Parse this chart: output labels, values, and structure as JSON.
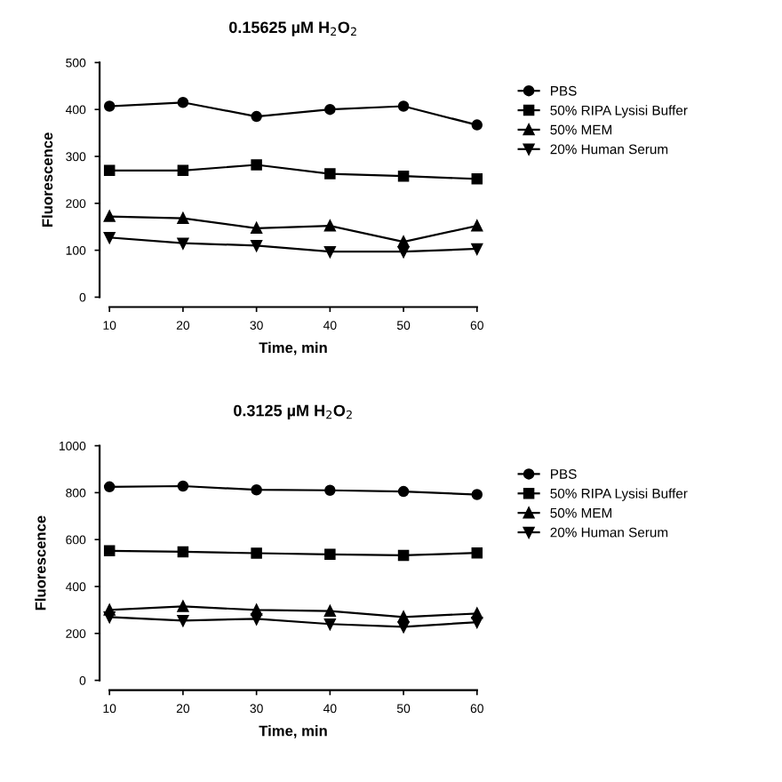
{
  "chart_data": [
    {
      "type": "line",
      "title": "0.15625 µM H$_{2}$O$_{2}$",
      "xlabel": "Time, min",
      "ylabel": "Fluorescence",
      "x": [
        10,
        20,
        30,
        40,
        50,
        60
      ],
      "xlim": [
        10,
        60
      ],
      "xticks": [
        10,
        20,
        30,
        40,
        50,
        60
      ],
      "ylim": [
        0,
        500
      ],
      "yticks": [
        0,
        100,
        200,
        300,
        400,
        500
      ],
      "legend": "right",
      "grid": false,
      "series": [
        {
          "name": "PBS",
          "color": "#000000",
          "marker": "circle",
          "values": [
            407,
            415,
            385,
            400,
            407,
            367
          ]
        },
        {
          "name": "50% RIPA Lysisi Buffer",
          "color": "#000000",
          "marker": "square",
          "values": [
            270,
            270,
            282,
            263,
            258,
            252
          ]
        },
        {
          "name": "50% MEM",
          "color": "#000000",
          "marker": "triangle",
          "values": [
            172,
            168,
            147,
            152,
            118,
            152
          ]
        },
        {
          "name": "20% Human Serum",
          "color": "#000000",
          "marker": "triangle-down",
          "values": [
            127,
            115,
            110,
            97,
            97,
            103
          ]
        }
      ]
    },
    {
      "type": "line",
      "title": "0.3125 µM H$_{2}$O$_{2}$",
      "xlabel": "Time, min",
      "ylabel": "Fluorescence",
      "x": [
        10,
        20,
        30,
        40,
        50,
        60
      ],
      "xlim": [
        10,
        60
      ],
      "xticks": [
        10,
        20,
        30,
        40,
        50,
        60
      ],
      "ylim": [
        0,
        1000
      ],
      "yticks": [
        0,
        200,
        400,
        600,
        800,
        1000
      ],
      "legend": "right",
      "grid": false,
      "series": [
        {
          "name": "PBS",
          "color": "#000000",
          "marker": "circle",
          "values": [
            825,
            828,
            812,
            810,
            805,
            792
          ]
        },
        {
          "name": "50% RIPA Lysisi Buffer",
          "color": "#000000",
          "marker": "square",
          "values": [
            552,
            548,
            542,
            537,
            533,
            543
          ]
        },
        {
          "name": "50% MEM",
          "color": "#000000",
          "marker": "triangle",
          "values": [
            300,
            315,
            300,
            295,
            270,
            285
          ]
        },
        {
          "name": "20% Human Serum",
          "color": "#000000",
          "marker": "triangle-down",
          "values": [
            270,
            255,
            262,
            240,
            228,
            248
          ]
        }
      ]
    }
  ]
}
